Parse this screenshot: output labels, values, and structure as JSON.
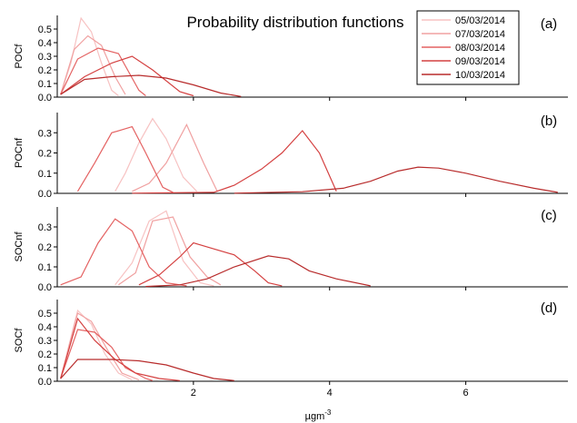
{
  "chart_data": {
    "type": "line",
    "title": "Probability distribution functions",
    "xlabel": "µgm⁻³",
    "xlim": [
      0,
      7.5
    ],
    "xticks": [
      "2",
      "4",
      "6"
    ],
    "xtick_values": [
      2,
      4,
      6
    ],
    "legend": {
      "placement": "top-right",
      "entries": [
        "05/03/2014",
        "07/03/2014",
        "08/03/2014",
        "09/03/2014",
        "10/03/2014"
      ]
    },
    "series_colors": [
      "#f7c2c2",
      "#f0a0a0",
      "#e46262",
      "#d44040",
      "#b82c2c"
    ],
    "panels": [
      {
        "tag": "(a)",
        "ylabel": "POCf",
        "ylim": [
          0,
          0.6
        ],
        "yticks": [
          "0.0",
          "0.1",
          "0.2",
          "0.3",
          "0.4",
          "0.5"
        ],
        "ytick_values": [
          0,
          0.1,
          0.2,
          0.3,
          0.4,
          0.5
        ],
        "series": [
          {
            "values": [
              [
                0.05,
                0.02
              ],
              [
                0.2,
                0.25
              ],
              [
                0.35,
                0.58
              ],
              [
                0.5,
                0.48
              ],
              [
                0.65,
                0.25
              ],
              [
                0.8,
                0.05
              ],
              [
                0.9,
                0.01
              ]
            ]
          },
          {
            "values": [
              [
                0.05,
                0.02
              ],
              [
                0.25,
                0.35
              ],
              [
                0.45,
                0.45
              ],
              [
                0.65,
                0.38
              ],
              [
                0.85,
                0.15
              ],
              [
                1.0,
                0.02
              ]
            ]
          },
          {
            "values": [
              [
                0.05,
                0.02
              ],
              [
                0.3,
                0.28
              ],
              [
                0.6,
                0.36
              ],
              [
                0.9,
                0.32
              ],
              [
                1.2,
                0.05
              ],
              [
                1.3,
                0.01
              ]
            ]
          },
          {
            "values": [
              [
                0.05,
                0.02
              ],
              [
                0.4,
                0.15
              ],
              [
                0.8,
                0.25
              ],
              [
                1.1,
                0.3
              ],
              [
                1.4,
                0.2
              ],
              [
                1.8,
                0.04
              ],
              [
                2.0,
                0.01
              ]
            ]
          },
          {
            "values": [
              [
                0.05,
                0.02
              ],
              [
                0.4,
                0.13
              ],
              [
                0.8,
                0.15
              ],
              [
                1.2,
                0.16
              ],
              [
                1.6,
                0.14
              ],
              [
                2.0,
                0.09
              ],
              [
                2.4,
                0.03
              ],
              [
                2.7,
                0.005
              ]
            ]
          }
        ]
      },
      {
        "tag": "(b)",
        "ylabel": "POCnf",
        "ylim": [
          0,
          0.4
        ],
        "yticks": [
          "0.0",
          "0.1",
          "0.2",
          "0.3"
        ],
        "ytick_values": [
          0,
          0.1,
          0.2,
          0.3
        ],
        "series": [
          {
            "values": [
              [
                0.85,
                0.01
              ],
              [
                1.0,
                0.1
              ],
              [
                1.2,
                0.25
              ],
              [
                1.4,
                0.37
              ],
              [
                1.6,
                0.27
              ],
              [
                1.85,
                0.08
              ],
              [
                2.05,
                0.01
              ]
            ]
          },
          {
            "values": [
              [
                1.1,
                0.01
              ],
              [
                1.35,
                0.05
              ],
              [
                1.6,
                0.15
              ],
              [
                1.9,
                0.34
              ],
              [
                2.15,
                0.15
              ],
              [
                2.35,
                0.01
              ]
            ]
          },
          {
            "values": [
              [
                0.3,
                0.01
              ],
              [
                0.55,
                0.15
              ],
              [
                0.8,
                0.3
              ],
              [
                1.1,
                0.33
              ],
              [
                1.3,
                0.2
              ],
              [
                1.55,
                0.03
              ],
              [
                1.7,
                0.005
              ]
            ]
          },
          {
            "values": [
              [
                1.1,
                0.001
              ],
              [
                2.3,
                0.005
              ],
              [
                2.6,
                0.04
              ],
              [
                3.0,
                0.12
              ],
              [
                3.3,
                0.2
              ],
              [
                3.6,
                0.31
              ],
              [
                3.85,
                0.2
              ],
              [
                4.1,
                0.01
              ]
            ]
          },
          {
            "values": [
              [
                2.6,
                0.001
              ],
              [
                3.6,
                0.008
              ],
              [
                4.2,
                0.025
              ],
              [
                4.6,
                0.06
              ],
              [
                5.0,
                0.11
              ],
              [
                5.3,
                0.13
              ],
              [
                5.6,
                0.125
              ],
              [
                6.0,
                0.1
              ],
              [
                6.5,
                0.06
              ],
              [
                7.0,
                0.025
              ],
              [
                7.35,
                0.005
              ]
            ]
          }
        ]
      },
      {
        "tag": "(c)",
        "ylabel": "SOCnf",
        "ylim": [
          0,
          0.4
        ],
        "yticks": [
          "0.0",
          "0.1",
          "0.2",
          "0.3"
        ],
        "ytick_values": [
          0,
          0.1,
          0.2,
          0.3
        ],
        "series": [
          {
            "values": [
              [
                0.85,
                0.01
              ],
              [
                1.1,
                0.12
              ],
              [
                1.35,
                0.33
              ],
              [
                1.6,
                0.38
              ],
              [
                1.85,
                0.13
              ],
              [
                2.1,
                0.02
              ],
              [
                2.3,
                0.005
              ]
            ]
          },
          {
            "values": [
              [
                0.9,
                0.01
              ],
              [
                1.15,
                0.07
              ],
              [
                1.4,
                0.33
              ],
              [
                1.7,
                0.35
              ],
              [
                1.95,
                0.15
              ],
              [
                2.2,
                0.05
              ],
              [
                2.4,
                0.01
              ]
            ]
          },
          {
            "values": [
              [
                0.05,
                0.01
              ],
              [
                0.35,
                0.05
              ],
              [
                0.6,
                0.22
              ],
              [
                0.85,
                0.34
              ],
              [
                1.1,
                0.28
              ],
              [
                1.35,
                0.1
              ],
              [
                1.6,
                0.02
              ],
              [
                1.9,
                0.005
              ]
            ]
          },
          {
            "values": [
              [
                1.2,
                0.01
              ],
              [
                1.5,
                0.06
              ],
              [
                1.8,
                0.15
              ],
              [
                2.0,
                0.22
              ],
              [
                2.3,
                0.19
              ],
              [
                2.6,
                0.16
              ],
              [
                2.9,
                0.08
              ],
              [
                3.1,
                0.02
              ],
              [
                3.3,
                0.005
              ]
            ]
          },
          {
            "values": [
              [
                1.3,
                0.002
              ],
              [
                1.8,
                0.01
              ],
              [
                2.2,
                0.04
              ],
              [
                2.6,
                0.1
              ],
              [
                3.1,
                0.155
              ],
              [
                3.4,
                0.14
              ],
              [
                3.7,
                0.08
              ],
              [
                4.1,
                0.04
              ],
              [
                4.6,
                0.005
              ]
            ]
          }
        ]
      },
      {
        "tag": "(d)",
        "ylabel": "SOCf",
        "ylim": [
          0,
          0.6
        ],
        "yticks": [
          "0.0",
          "0.1",
          "0.2",
          "0.3",
          "0.4",
          "0.5"
        ],
        "ytick_values": [
          0,
          0.1,
          0.2,
          0.3,
          0.4,
          0.5
        ],
        "series": [
          {
            "values": [
              [
                0.05,
                0.02
              ],
              [
                0.3,
                0.52
              ],
              [
                0.5,
                0.42
              ],
              [
                0.7,
                0.2
              ],
              [
                0.9,
                0.06
              ],
              [
                1.1,
                0.01
              ]
            ]
          },
          {
            "values": [
              [
                0.05,
                0.02
              ],
              [
                0.3,
                0.5
              ],
              [
                0.5,
                0.44
              ],
              [
                0.75,
                0.22
              ],
              [
                0.95,
                0.06
              ],
              [
                1.2,
                0.01
              ]
            ]
          },
          {
            "values": [
              [
                0.05,
                0.02
              ],
              [
                0.3,
                0.38
              ],
              [
                0.55,
                0.36
              ],
              [
                0.8,
                0.25
              ],
              [
                1.0,
                0.1
              ],
              [
                1.3,
                0.02
              ],
              [
                1.4,
                0.005
              ]
            ]
          },
          {
            "values": [
              [
                0.05,
                0.02
              ],
              [
                0.3,
                0.46
              ],
              [
                0.55,
                0.3
              ],
              [
                0.85,
                0.16
              ],
              [
                1.15,
                0.06
              ],
              [
                1.5,
                0.02
              ],
              [
                1.8,
                0.005
              ]
            ]
          },
          {
            "values": [
              [
                0.05,
                0.02
              ],
              [
                0.3,
                0.16
              ],
              [
                0.8,
                0.16
              ],
              [
                1.2,
                0.15
              ],
              [
                1.6,
                0.12
              ],
              [
                2.0,
                0.06
              ],
              [
                2.3,
                0.02
              ],
              [
                2.6,
                0.005
              ]
            ]
          }
        ]
      }
    ]
  }
}
